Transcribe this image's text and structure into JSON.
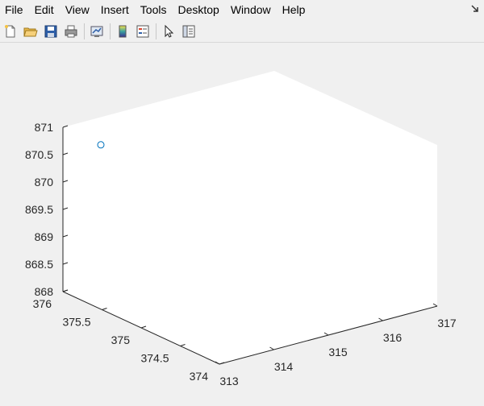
{
  "menu": {
    "items": [
      {
        "label": "File"
      },
      {
        "label": "Edit"
      },
      {
        "label": "View"
      },
      {
        "label": "Insert"
      },
      {
        "label": "Tools"
      },
      {
        "label": "Desktop"
      },
      {
        "label": "Window"
      },
      {
        "label": "Help"
      }
    ]
  },
  "toolbar": {
    "buttons": [
      "new-figure-icon",
      "open-file-icon",
      "save-icon",
      "print-icon",
      "link-plot-icon",
      "insert-colorbar-icon",
      "insert-legend-icon",
      "edit-plot-pointer-icon",
      "property-inspector-icon"
    ]
  },
  "chart_data": {
    "type": "scatter",
    "title": "",
    "xlabel": "",
    "ylabel": "",
    "zlabel": "",
    "xlim": [
      313,
      317
    ],
    "ylim": [
      374,
      376
    ],
    "zlim": [
      868,
      871
    ],
    "x_ticks": [
      "313",
      "314",
      "315",
      "316",
      "317"
    ],
    "y_ticks": [
      "374",
      "374.5",
      "375",
      "375.5",
      "376"
    ],
    "z_ticks": [
      "868",
      "868.5",
      "869",
      "869.5",
      "870",
      "870.5",
      "871"
    ],
    "points": [
      {
        "x": 313,
        "y": 376,
        "z": 870.9
      }
    ],
    "marker": "circle",
    "marker_color": "#0072bd",
    "grid": false
  }
}
